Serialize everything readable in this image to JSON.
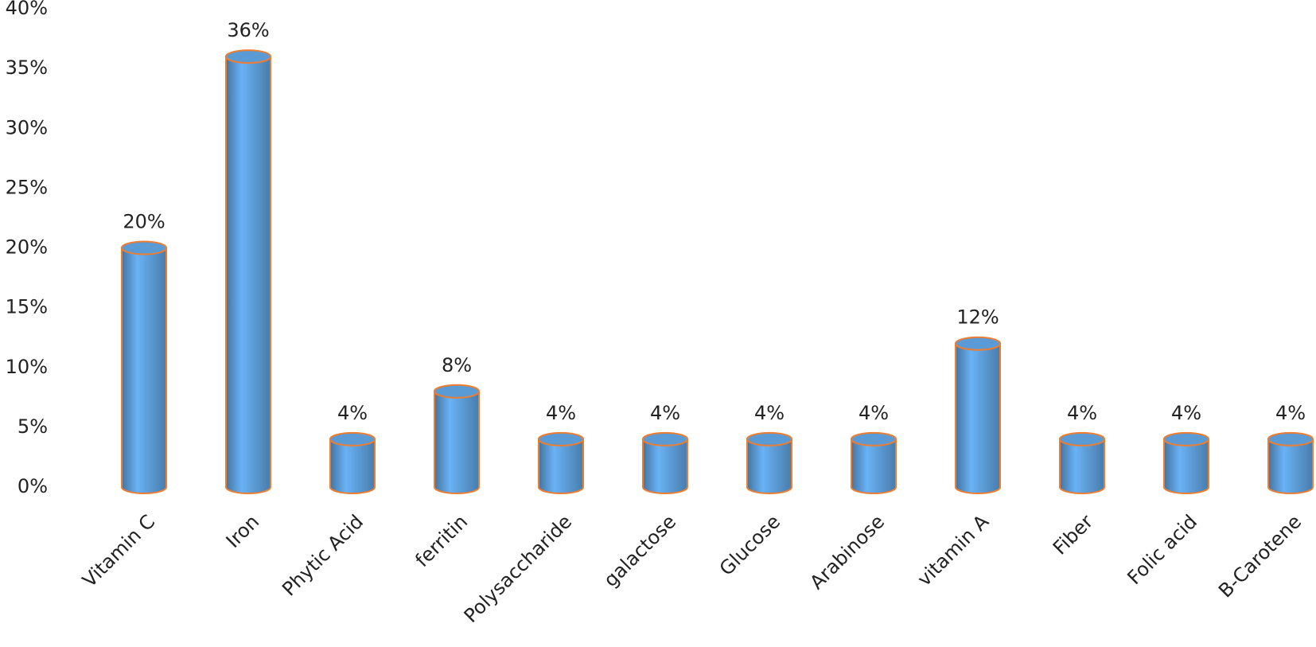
{
  "chart_data": {
    "type": "bar",
    "categories": [
      "Vitamin C",
      "Iron",
      "Phytic Acid",
      "ferritin",
      "Polysaccharide",
      "galactose",
      "Glucose",
      "Arabinose",
      "vitamin A",
      "Fiber",
      "Folic acid",
      "B-Carotene"
    ],
    "values": [
      20,
      36,
      4,
      8,
      4,
      4,
      4,
      4,
      12,
      4,
      4,
      4
    ],
    "value_labels": [
      "20%",
      "36%",
      "4%",
      "8%",
      "4%",
      "4%",
      "4%",
      "4%",
      "12%",
      "4%",
      "4%",
      "4%"
    ],
    "color": "#5b9bd5",
    "edge_color": "#ed7d31",
    "ylim": [
      0,
      40
    ],
    "yticks": [
      {
        "value": 0,
        "label": "0%"
      },
      {
        "value": 5,
        "label": "5%"
      },
      {
        "value": 10,
        "label": "10%"
      },
      {
        "value": 15,
        "label": "15%"
      },
      {
        "value": 20,
        "label": "20%"
      },
      {
        "value": 25,
        "label": "25%"
      },
      {
        "value": 30,
        "label": "30%"
      },
      {
        "value": 35,
        "label": "35%"
      },
      {
        "value": 40,
        "label": "40%"
      }
    ],
    "grid": false
  }
}
